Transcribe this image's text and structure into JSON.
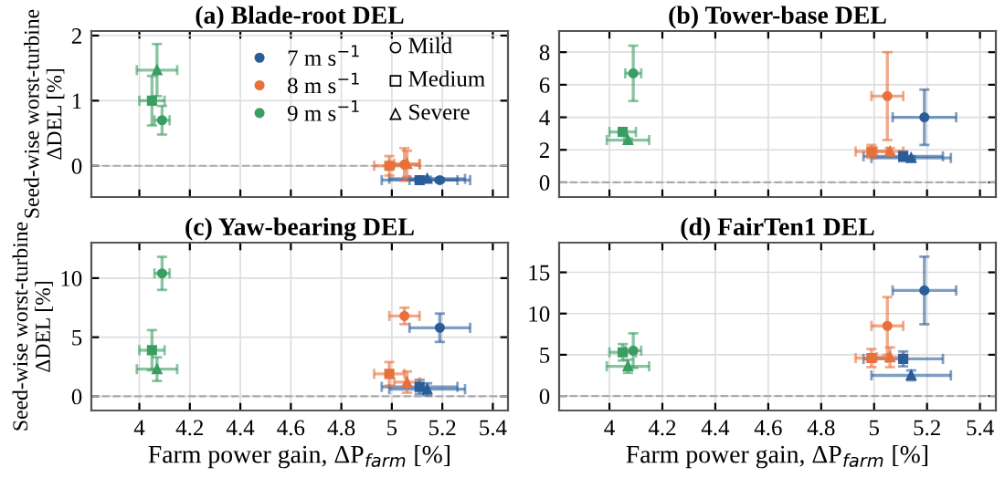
{
  "chart_data": [
    {
      "type": "scatter",
      "title": "(a) Blade-root DEL",
      "ylabel": "Seed-wise worst-turbine\nΔDEL [%]",
      "xlim": [
        3.81,
        5.46
      ],
      "xticks": [
        4,
        4.2,
        4.4,
        4.6,
        4.8,
        5,
        5.2,
        5.4
      ],
      "ylim": [
        -0.48,
        2.07
      ],
      "yticks": [
        0,
        1,
        2
      ],
      "tick_labels": "y",
      "grid": true,
      "legend": "top right",
      "annotations": [
        "Mild",
        "Medium",
        "Severe"
      ],
      "ref_lines": [
        {
          "axis": "y",
          "value": 0,
          "color": "#aaaaaa",
          "line_style": "dashed"
        }
      ],
      "series": [
        {
          "name": "7 m s$^{−1}$",
          "color": "#2b5d9b",
          "marker": "circle",
          "x": [
            5.19
          ],
          "values": [
            -0.22
          ],
          "errors": [
            0.03
          ],
          "xerrors": [
            0.12
          ]
        },
        {
          "color": "#2b5d9b",
          "marker": "square",
          "x": [
            5.11
          ],
          "values": [
            -0.22
          ],
          "errors": [
            0.03
          ],
          "xerrors": [
            0.15
          ]
        },
        {
          "color": "#2b5d9b",
          "marker": "triangle",
          "x": [
            5.14
          ],
          "values": [
            -0.2
          ],
          "errors": [
            0.03
          ],
          "xerrors": [
            0.15
          ]
        },
        {
          "name": "8 m s$^{−1}$",
          "color": "#e8703a",
          "marker": "circle",
          "x": [
            5.05
          ],
          "values": [
            0.02
          ],
          "errors": [
            0.25
          ],
          "xerrors": [
            0.06
          ]
        },
        {
          "color": "#e8703a",
          "marker": "square",
          "x": [
            4.99
          ],
          "values": [
            0.0
          ],
          "errors": [
            0.15
          ],
          "xerrors": [
            0.06
          ]
        },
        {
          "color": "#e8703a",
          "marker": "triangle",
          "x": [
            5.06
          ],
          "values": [
            0.03
          ],
          "errors": [
            0.2
          ],
          "xerrors": [
            0.05
          ]
        },
        {
          "name": "9 m s$^{−1}$",
          "color": "#3a9e62",
          "marker": "circle",
          "x": [
            4.09
          ],
          "values": [
            0.7
          ],
          "errors": [
            0.22
          ],
          "xerrors": [
            0.03
          ]
        },
        {
          "color": "#3a9e62",
          "marker": "square",
          "x": [
            4.05
          ],
          "values": [
            1.0
          ],
          "errors": [
            0.38
          ],
          "xerrors": [
            0.05
          ]
        },
        {
          "color": "#3a9e62",
          "marker": "triangle",
          "x": [
            4.07
          ],
          "values": [
            1.47
          ],
          "errors": [
            0.4
          ],
          "xerrors": [
            0.08
          ]
        }
      ]
    },
    {
      "type": "scatter",
      "title": "(b) Tower-base DEL",
      "xlim": [
        3.81,
        5.46
      ],
      "xticks": [
        4,
        4.2,
        4.4,
        4.6,
        4.8,
        5,
        5.2,
        5.4
      ],
      "ylim": [
        -0.9,
        9.3
      ],
      "yticks": [
        0,
        2,
        4,
        6,
        8
      ],
      "tick_labels": "y",
      "grid": true,
      "ref_lines": [
        {
          "axis": "y",
          "value": 0,
          "color": "#aaaaaa",
          "line_style": "dashed"
        }
      ],
      "series": [
        {
          "color": "#2b5d9b",
          "marker": "circle",
          "x": [
            5.19
          ],
          "values": [
            4.0
          ],
          "errors": [
            1.7
          ],
          "xerrors": [
            0.12
          ]
        },
        {
          "color": "#2b5d9b",
          "marker": "square",
          "x": [
            5.11
          ],
          "values": [
            1.6
          ],
          "errors": [
            0.3
          ],
          "xerrors": [
            0.15
          ]
        },
        {
          "color": "#2b5d9b",
          "marker": "triangle",
          "x": [
            5.14
          ],
          "values": [
            1.5
          ],
          "errors": [
            0.1
          ],
          "xerrors": [
            0.15
          ]
        },
        {
          "color": "#e8703a",
          "marker": "circle",
          "x": [
            5.05
          ],
          "values": [
            5.3
          ],
          "errors": [
            2.7
          ],
          "xerrors": [
            0.06
          ]
        },
        {
          "color": "#e8703a",
          "marker": "square",
          "x": [
            4.99
          ],
          "values": [
            1.9
          ],
          "errors": [
            0.4
          ],
          "xerrors": [
            0.06
          ]
        },
        {
          "color": "#e8703a",
          "marker": "triangle",
          "x": [
            5.06
          ],
          "values": [
            1.9
          ],
          "errors": [
            0.2
          ],
          "xerrors": [
            0.05
          ]
        },
        {
          "color": "#3a9e62",
          "marker": "circle",
          "x": [
            4.09
          ],
          "values": [
            6.7
          ],
          "errors": [
            1.7
          ],
          "xerrors": [
            0.03
          ]
        },
        {
          "color": "#3a9e62",
          "marker": "square",
          "x": [
            4.05
          ],
          "values": [
            3.1
          ],
          "errors": [
            0.1
          ],
          "xerrors": [
            0.05
          ]
        },
        {
          "color": "#3a9e62",
          "marker": "triangle",
          "x": [
            4.07
          ],
          "values": [
            2.6
          ],
          "errors": [
            0.1
          ],
          "xerrors": [
            0.08
          ]
        }
      ]
    },
    {
      "type": "scatter",
      "title": "(c) Yaw-bearing DEL",
      "xlabel": "Farm power gain, ΔP$_{farm}$ [%]",
      "ylabel": "Seed-wise worst-turbine\nΔDEL [%]",
      "xlim": [
        3.81,
        5.46
      ],
      "xticks": [
        4,
        4.2,
        4.4,
        4.6,
        4.8,
        5,
        5.2,
        5.4
      ],
      "ylim": [
        -1.2,
        13
      ],
      "yticks": [
        0,
        5,
        10
      ],
      "grid": true,
      "ref_lines": [
        {
          "axis": "y",
          "value": 0,
          "color": "#aaaaaa",
          "line_style": "dashed"
        }
      ],
      "series": [
        {
          "color": "#2b5d9b",
          "marker": "circle",
          "x": [
            5.19
          ],
          "values": [
            5.8
          ],
          "errors": [
            1.2
          ],
          "xerrors": [
            0.12
          ]
        },
        {
          "color": "#2b5d9b",
          "marker": "square",
          "x": [
            5.11
          ],
          "values": [
            0.8
          ],
          "errors": [
            0.6
          ],
          "xerrors": [
            0.15
          ]
        },
        {
          "color": "#2b5d9b",
          "marker": "triangle",
          "x": [
            5.14
          ],
          "values": [
            0.6
          ],
          "errors": [
            0.5
          ],
          "xerrors": [
            0.15
          ]
        },
        {
          "color": "#e8703a",
          "marker": "circle",
          "x": [
            5.05
          ],
          "values": [
            6.8
          ],
          "errors": [
            0.7
          ],
          "xerrors": [
            0.06
          ]
        },
        {
          "color": "#e8703a",
          "marker": "square",
          "x": [
            4.99
          ],
          "values": [
            1.9
          ],
          "errors": [
            1.0
          ],
          "xerrors": [
            0.06
          ]
        },
        {
          "color": "#e8703a",
          "marker": "triangle",
          "x": [
            5.06
          ],
          "values": [
            1.2
          ],
          "errors": [
            0.9
          ],
          "xerrors": [
            0.05
          ]
        },
        {
          "color": "#3a9e62",
          "marker": "circle",
          "x": [
            4.09
          ],
          "values": [
            10.4
          ],
          "errors": [
            1.4
          ],
          "xerrors": [
            0.03
          ]
        },
        {
          "color": "#3a9e62",
          "marker": "square",
          "x": [
            4.05
          ],
          "values": [
            3.9
          ],
          "errors": [
            1.7
          ],
          "xerrors": [
            0.05
          ]
        },
        {
          "color": "#3a9e62",
          "marker": "triangle",
          "x": [
            4.07
          ],
          "values": [
            2.3
          ],
          "errors": [
            1.0
          ],
          "xerrors": [
            0.08
          ]
        }
      ]
    },
    {
      "type": "scatter",
      "title": "(d) FairTen1 DEL",
      "xlabel": "Farm power gain, ΔP$_{farm}$ [%]",
      "xlim": [
        3.81,
        5.46
      ],
      "xticks": [
        4,
        4.2,
        4.4,
        4.6,
        4.8,
        5,
        5.2,
        5.4
      ],
      "ylim": [
        -1.76,
        18.6
      ],
      "yticks": [
        0,
        5,
        10,
        15
      ],
      "grid": true,
      "ref_lines": [
        {
          "axis": "y",
          "value": 0,
          "color": "#aaaaaa",
          "line_style": "dashed"
        }
      ],
      "series": [
        {
          "color": "#2b5d9b",
          "marker": "circle",
          "x": [
            5.19
          ],
          "values": [
            12.8
          ],
          "errors": [
            4.1
          ],
          "xerrors": [
            0.12
          ]
        },
        {
          "color": "#2b5d9b",
          "marker": "square",
          "x": [
            5.11
          ],
          "values": [
            4.5
          ],
          "errors": [
            0.9
          ],
          "xerrors": [
            0.15
          ]
        },
        {
          "color": "#2b5d9b",
          "marker": "triangle",
          "x": [
            5.14
          ],
          "values": [
            2.5
          ],
          "errors": [
            0.6
          ],
          "xerrors": [
            0.15
          ]
        },
        {
          "color": "#e8703a",
          "marker": "circle",
          "x": [
            5.05
          ],
          "values": [
            8.5
          ],
          "errors": [
            3.5
          ],
          "xerrors": [
            0.06
          ]
        },
        {
          "color": "#e8703a",
          "marker": "square",
          "x": [
            4.99
          ],
          "values": [
            4.6
          ],
          "errors": [
            1.1
          ],
          "xerrors": [
            0.06
          ]
        },
        {
          "color": "#e8703a",
          "marker": "triangle",
          "x": [
            5.06
          ],
          "values": [
            4.7
          ],
          "errors": [
            1.2
          ],
          "xerrors": [
            0.05
          ]
        },
        {
          "color": "#3a9e62",
          "marker": "circle",
          "x": [
            4.09
          ],
          "values": [
            5.5
          ],
          "errors": [
            2.1
          ],
          "xerrors": [
            0.03
          ]
        },
        {
          "color": "#3a9e62",
          "marker": "square",
          "x": [
            4.05
          ],
          "values": [
            5.3
          ],
          "errors": [
            1.0
          ],
          "xerrors": [
            0.05
          ]
        },
        {
          "color": "#3a9e62",
          "marker": "triangle",
          "x": [
            4.07
          ],
          "values": [
            3.6
          ],
          "errors": [
            0.8
          ],
          "xerrors": [
            0.08
          ]
        }
      ]
    }
  ]
}
